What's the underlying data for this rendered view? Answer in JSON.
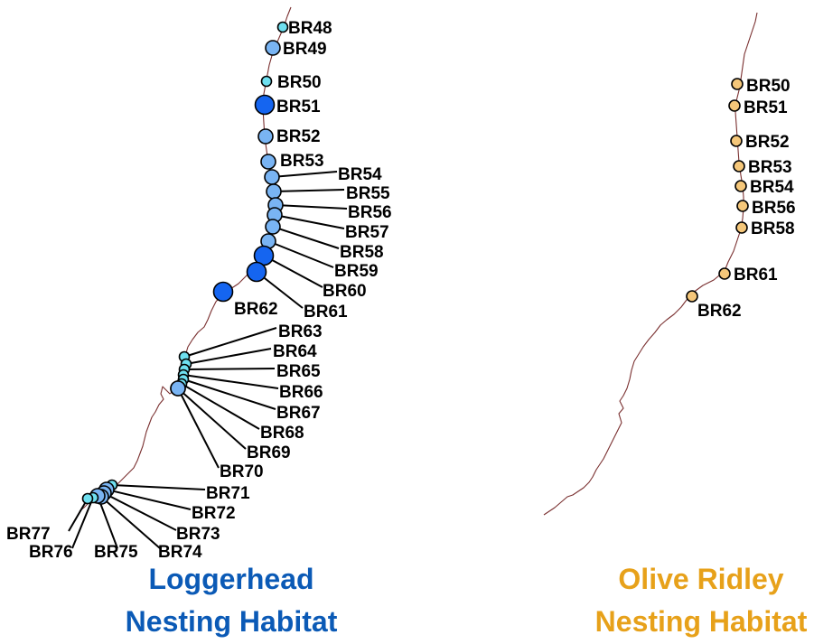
{
  "colors": {
    "coast": "#7a3030",
    "loggerhead_title": "#0b5ab6",
    "olive_title": "#e7a11a",
    "site_small": "#6fe0f0",
    "site_medium": "#79b4f3",
    "site_large": "#1565f0",
    "olive_site": "#f5c77a"
  },
  "panels": {
    "loggerhead": {
      "title_line1": "Loggerhead",
      "title_line2": "Nesting Habitat",
      "sites": [
        {
          "id": "BR48",
          "label": "BR48",
          "size": "small"
        },
        {
          "id": "BR49",
          "label": "BR49",
          "size": "medium"
        },
        {
          "id": "BR50",
          "label": "BR50",
          "size": "small"
        },
        {
          "id": "BR51",
          "label": "BR51",
          "size": "large"
        },
        {
          "id": "BR52",
          "label": "BR52",
          "size": "medium"
        },
        {
          "id": "BR53",
          "label": "BR53",
          "size": "medium"
        },
        {
          "id": "BR54",
          "label": "BR54",
          "size": "medium"
        },
        {
          "id": "BR55",
          "label": "BR55",
          "size": "medium"
        },
        {
          "id": "BR56",
          "label": "BR56",
          "size": "medium"
        },
        {
          "id": "BR57",
          "label": "BR57",
          "size": "medium"
        },
        {
          "id": "BR58",
          "label": "BR58",
          "size": "medium"
        },
        {
          "id": "BR59",
          "label": "BR59",
          "size": "medium"
        },
        {
          "id": "BR60",
          "label": "BR60",
          "size": "large"
        },
        {
          "id": "BR61",
          "label": "BR61",
          "size": "large"
        },
        {
          "id": "BR62",
          "label": "BR62",
          "size": "large"
        },
        {
          "id": "BR63",
          "label": "BR63",
          "size": "small"
        },
        {
          "id": "BR64",
          "label": "BR64",
          "size": "small"
        },
        {
          "id": "BR65",
          "label": "BR65",
          "size": "small"
        },
        {
          "id": "BR66",
          "label": "BR66",
          "size": "small"
        },
        {
          "id": "BR67",
          "label": "BR67",
          "size": "small"
        },
        {
          "id": "BR68",
          "label": "BR68",
          "size": "small"
        },
        {
          "id": "BR69",
          "label": "BR69",
          "size": "medium"
        },
        {
          "id": "BR70",
          "label": "BR70",
          "size": "medium"
        },
        {
          "id": "BR71",
          "label": "BR71",
          "size": "small"
        },
        {
          "id": "BR72",
          "label": "BR72",
          "size": "medium"
        },
        {
          "id": "BR73",
          "label": "BR73",
          "size": "medium"
        },
        {
          "id": "BR74",
          "label": "BR74",
          "size": "medium"
        },
        {
          "id": "BR75",
          "label": "BR75",
          "size": "medium"
        },
        {
          "id": "BR76",
          "label": "BR76",
          "size": "small"
        },
        {
          "id": "BR77",
          "label": "BR77",
          "size": "small"
        }
      ]
    },
    "olive_ridley": {
      "title_line1": "Olive Ridley",
      "title_line2": "Nesting Habitat",
      "sites": [
        {
          "id": "BR50",
          "label": "BR50"
        },
        {
          "id": "BR51",
          "label": "BR51"
        },
        {
          "id": "BR52",
          "label": "BR52"
        },
        {
          "id": "BR53",
          "label": "BR53"
        },
        {
          "id": "BR54",
          "label": "BR54"
        },
        {
          "id": "BR56",
          "label": "BR56"
        },
        {
          "id": "BR58",
          "label": "BR58"
        },
        {
          "id": "BR61",
          "label": "BR61"
        },
        {
          "id": "BR62",
          "label": "BR62"
        }
      ]
    }
  }
}
